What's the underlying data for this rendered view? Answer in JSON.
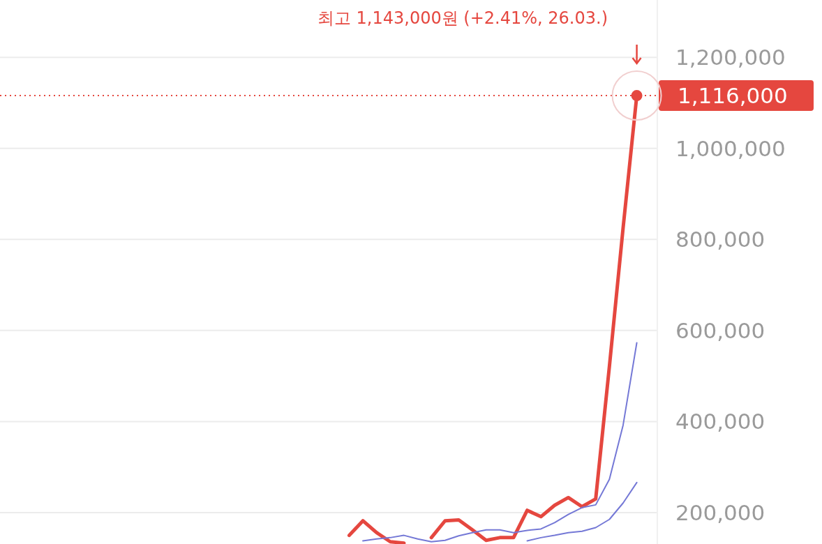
{
  "chart_data": {
    "type": "line",
    "categories": [
      null,
      null,
      null,
      null,
      null,
      null,
      null,
      null,
      null,
      null,
      null,
      null,
      null,
      null,
      null,
      null,
      null,
      null,
      null,
      null,
      null,
      null,
      null,
      null,
      null,
      null,
      null,
      null,
      null,
      null,
      null,
      null,
      null,
      null,
      null,
      null,
      null,
      null,
      null,
      null,
      null,
      null,
      null,
      null,
      null,
      null,
      null,
      null
    ],
    "series": [
      {
        "color": "#e5473f",
        "values": [
          null,
          null,
          null,
          null,
          null,
          null,
          null,
          null,
          null,
          null,
          null,
          null,
          null,
          null,
          null,
          null,
          null,
          null,
          null,
          null,
          null,
          null,
          null,
          null,
          null,
          150000,
          182000,
          156000,
          136000,
          133000,
          null,
          145000,
          182000,
          184000,
          162000,
          139000,
          145000,
          145000,
          205000,
          191000,
          216000,
          233000,
          213000,
          230000,
          521000,
          825000,
          1116000,
          null
        ]
      },
      {
        "color": "#7478d6",
        "values": [
          null,
          null,
          null,
          null,
          null,
          null,
          null,
          null,
          null,
          null,
          null,
          null,
          null,
          null,
          null,
          null,
          null,
          null,
          null,
          null,
          null,
          null,
          null,
          null,
          null,
          null,
          138000,
          142000,
          145000,
          150000,
          142000,
          136000,
          139000,
          149000,
          156000,
          162000,
          162000,
          156000,
          161000,
          164000,
          178000,
          196000,
          211000,
          217000,
          273000,
          392000,
          573000,
          null
        ]
      },
      {
        "color": "#7478d6",
        "values": [
          null,
          null,
          null,
          null,
          null,
          null,
          null,
          null,
          null,
          null,
          null,
          null,
          null,
          null,
          null,
          null,
          null,
          null,
          null,
          null,
          null,
          null,
          null,
          null,
          null,
          null,
          null,
          null,
          null,
          null,
          null,
          null,
          null,
          null,
          null,
          null,
          null,
          null,
          138000,
          145000,
          150000,
          156000,
          159000,
          167000,
          185000,
          221000,
          266000,
          null
        ]
      }
    ],
    "ylim": [
      131000,
      1326000
    ],
    "yticks": [
      {
        "value": 200000,
        "label": "200,000"
      },
      {
        "value": 400000,
        "label": "400,000"
      },
      {
        "value": 600000,
        "label": "600,000"
      },
      {
        "value": 800000,
        "label": "800,000"
      },
      {
        "value": 1000000,
        "label": "1,000,000"
      },
      {
        "value": 1200000,
        "label": "1,200,000"
      }
    ],
    "grid": "y",
    "legend": false,
    "line_style": "solid",
    "ref_lines": [
      {
        "axis": "y",
        "value": 1116000,
        "label": "1,116,000",
        "color": "#e5473f",
        "line_style": "dotted"
      }
    ],
    "annotations": [
      "최고 1,143,000원 (+2.41%, 26.03.)"
    ]
  }
}
